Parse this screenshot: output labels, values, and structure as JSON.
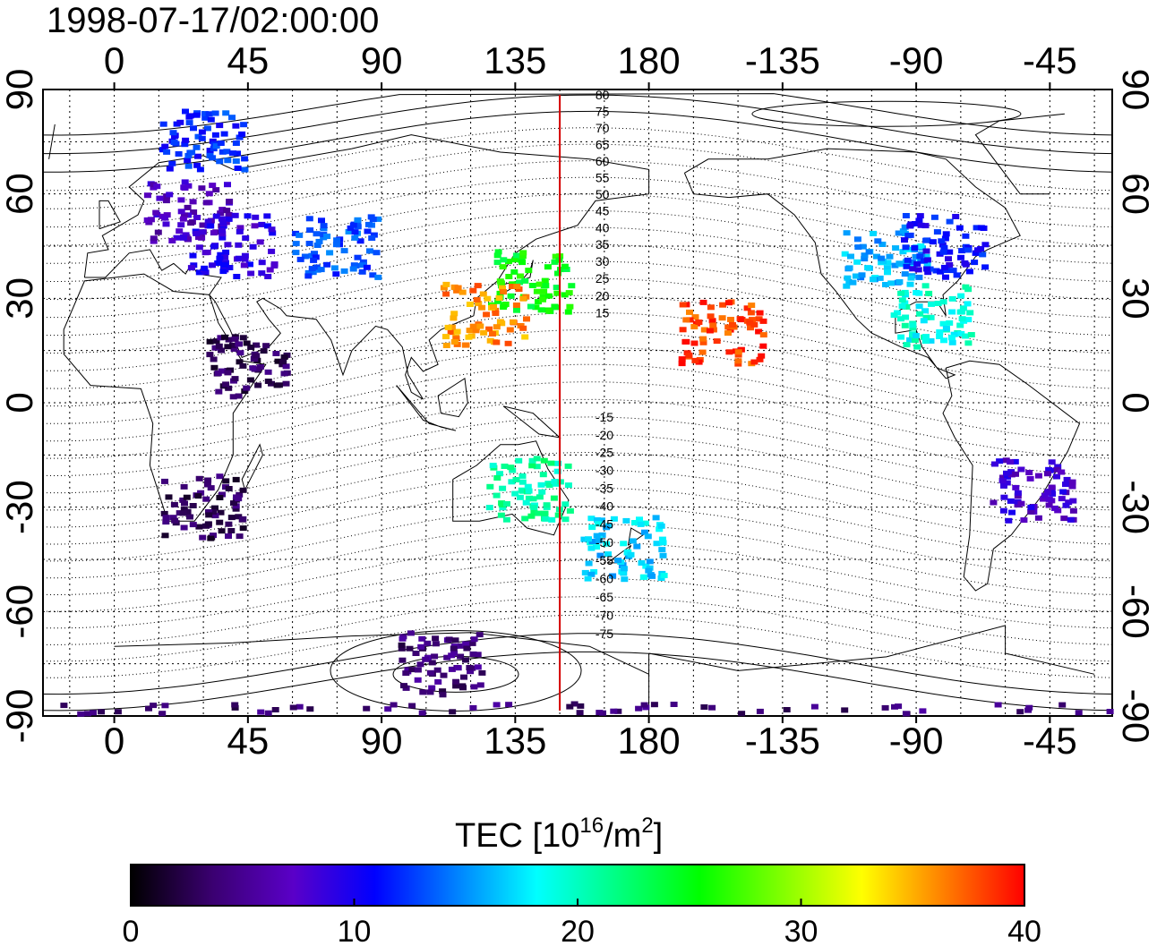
{
  "title": "1998-07-17/02:00:00",
  "map": {
    "lon_tick_labels": [
      "0",
      "45",
      "90",
      "135",
      "180",
      "-135",
      "-90",
      "-45"
    ],
    "lat_tick_labels": [
      "90",
      "60",
      "30",
      "0",
      "-30",
      "-60",
      "-90"
    ],
    "meridian_marker_lon": 150,
    "magnetic_latitude_labels": [
      "80",
      "75",
      "70",
      "65",
      "60",
      "55",
      "50",
      "45",
      "40",
      "35",
      "30",
      "25",
      "20",
      "15",
      "-15",
      "-20",
      "-25",
      "-30",
      "-35",
      "-40",
      "-45",
      "-50",
      "-55",
      "-60",
      "-65",
      "-70",
      "-75"
    ]
  },
  "colorbar": {
    "title_main": "TEC  [10",
    "title_sup1": "16",
    "title_mid": "/m",
    "title_sup2": "2",
    "title_end": "]",
    "tick_labels": [
      "0",
      "10",
      "20",
      "30",
      "40"
    ],
    "range": [
      0,
      40
    ],
    "colors": [
      "#000000",
      "#3a0070",
      "#5a00c8",
      "#0000ff",
      "#0080ff",
      "#00ffff",
      "#00ff80",
      "#00ff00",
      "#80ff00",
      "#ffff00",
      "#ff8000",
      "#ff0000"
    ]
  },
  "tec_regions": [
    {
      "lon": 25,
      "lat": 55,
      "tec": 7
    },
    {
      "lon": 40,
      "lat": 45,
      "tec": 9
    },
    {
      "lon": 30,
      "lat": 75,
      "tec": 12
    },
    {
      "lon": 75,
      "lat": 45,
      "tec": 13
    },
    {
      "lon": 140,
      "lat": 35,
      "tec": 25
    },
    {
      "lon": 125,
      "lat": 25,
      "tec": 36
    },
    {
      "lon": -155,
      "lat": 20,
      "tec": 38
    },
    {
      "lon": -100,
      "lat": 42,
      "tec": 16
    },
    {
      "lon": -80,
      "lat": 45,
      "tec": 11
    },
    {
      "lon": -85,
      "lat": 25,
      "tec": 19
    },
    {
      "lon": 140,
      "lat": -25,
      "tec": 21
    },
    {
      "lon": 172,
      "lat": -42,
      "tec": 17
    },
    {
      "lon": -50,
      "lat": -25,
      "tec": 8
    },
    {
      "lon": 110,
      "lat": -75,
      "tec": 4
    },
    {
      "lon": 45,
      "lat": 10,
      "tec": 3
    },
    {
      "lon": 30,
      "lat": -30,
      "tec": 3
    },
    {
      "lon": 0,
      "lat": -88,
      "tec": 4
    }
  ]
}
